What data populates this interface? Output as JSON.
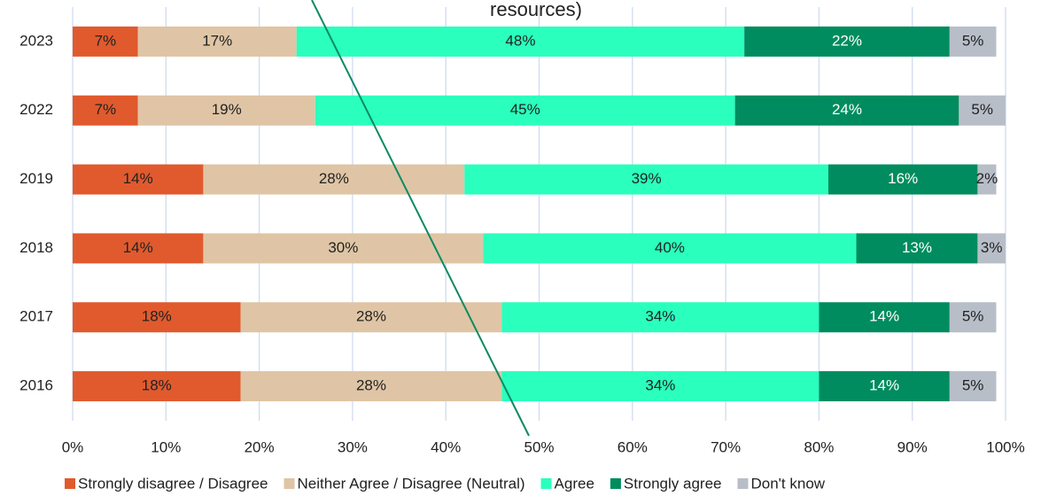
{
  "chart_data": {
    "type": "stacked-barh",
    "annotation": "resources)",
    "categories": [
      "2023",
      "2022",
      "2019",
      "2018",
      "2017",
      "2016"
    ],
    "series": [
      {
        "name": "Strongly disagree / Disagree",
        "color": "#e05a2e",
        "values": [
          7,
          7,
          14,
          14,
          18,
          18
        ],
        "value_labels": [
          "7%",
          "7%",
          "14%",
          "14%",
          "18%",
          "18%"
        ]
      },
      {
        "name": "Neither Agree / Disagree (Neutral)",
        "color": "#dfc5a5",
        "values": [
          17,
          19,
          28,
          30,
          28,
          28
        ],
        "value_labels": [
          "17%",
          "19%",
          "28%",
          "30%",
          "28%",
          "28%"
        ]
      },
      {
        "name": "Agree",
        "color": "#2affbd",
        "values": [
          48,
          45,
          39,
          40,
          34,
          34
        ],
        "value_labels": [
          "48%",
          "45%",
          "39%",
          "40%",
          "34%",
          "34%"
        ]
      },
      {
        "name": "Strongly agree",
        "color": "#008c5e",
        "values": [
          22,
          24,
          16,
          13,
          14,
          14
        ],
        "value_labels": [
          "22%",
          "24%",
          "16%",
          "13%",
          "14%",
          "14%"
        ]
      },
      {
        "name": "Don't know",
        "color": "#b8bec8",
        "values": [
          5,
          5,
          2,
          3,
          5,
          5
        ],
        "value_labels": [
          "5%",
          "5%",
          "2%",
          "3%",
          "5%",
          "5%"
        ]
      }
    ],
    "xlim": [
      0,
      100
    ],
    "xticks": [
      {
        "value": 0,
        "label": "0%"
      },
      {
        "value": 10,
        "label": "10%"
      },
      {
        "value": 20,
        "label": "20%"
      },
      {
        "value": 30,
        "label": "30%"
      },
      {
        "value": 40,
        "label": "40%"
      },
      {
        "value": 50,
        "label": "50%"
      },
      {
        "value": 60,
        "label": "60%"
      },
      {
        "value": 70,
        "label": "70%"
      },
      {
        "value": 80,
        "label": "80%"
      },
      {
        "value": 90,
        "label": "90%"
      },
      {
        "value": 100,
        "label": "100%"
      }
    ],
    "grid": true,
    "legend": "bottom"
  }
}
